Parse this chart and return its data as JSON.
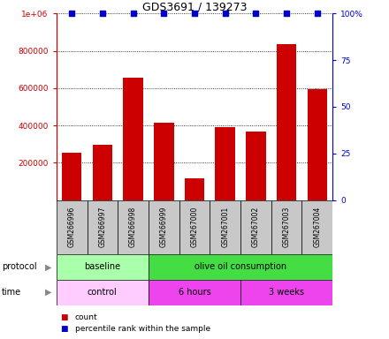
{
  "title": "GDS3691 / 139273",
  "samples": [
    "GSM266996",
    "GSM266997",
    "GSM266998",
    "GSM266999",
    "GSM267000",
    "GSM267001",
    "GSM267002",
    "GSM267003",
    "GSM267004"
  ],
  "counts": [
    255000,
    295000,
    655000,
    415000,
    115000,
    390000,
    365000,
    835000,
    595000
  ],
  "percentile_ranks": [
    100,
    100,
    100,
    100,
    100,
    100,
    100,
    100,
    100
  ],
  "bar_color": "#cc0000",
  "dot_color": "#0000cc",
  "ylim_left": [
    0,
    1000000
  ],
  "ylim_right": [
    0,
    100
  ],
  "yticks_left": [
    200000,
    400000,
    600000,
    800000,
    1000000
  ],
  "ytick_labels_left": [
    "200000",
    "400000",
    "600000",
    "800000",
    "1e+06"
  ],
  "yticks_right": [
    0,
    25,
    50,
    75,
    100
  ],
  "ytick_labels_right": [
    "0",
    "25",
    "50",
    "75",
    "100%"
  ],
  "protocol_groups": [
    {
      "label": "baseline",
      "start": 0,
      "end": 3,
      "color": "#aaffaa"
    },
    {
      "label": "olive oil consumption",
      "start": 3,
      "end": 9,
      "color": "#44dd44"
    }
  ],
  "time_groups": [
    {
      "label": "control",
      "start": 0,
      "end": 3,
      "color": "#ffccff"
    },
    {
      "label": "6 hours",
      "start": 3,
      "end": 6,
      "color": "#ee44ee"
    },
    {
      "label": "3 weeks",
      "start": 6,
      "end": 9,
      "color": "#ee44ee"
    }
  ],
  "legend_count_label": "count",
  "legend_pct_label": "percentile rank within the sample",
  "left_axis_color": "#cc0000",
  "right_axis_color": "#0000cc",
  "sample_box_color": "#c8c8c8"
}
